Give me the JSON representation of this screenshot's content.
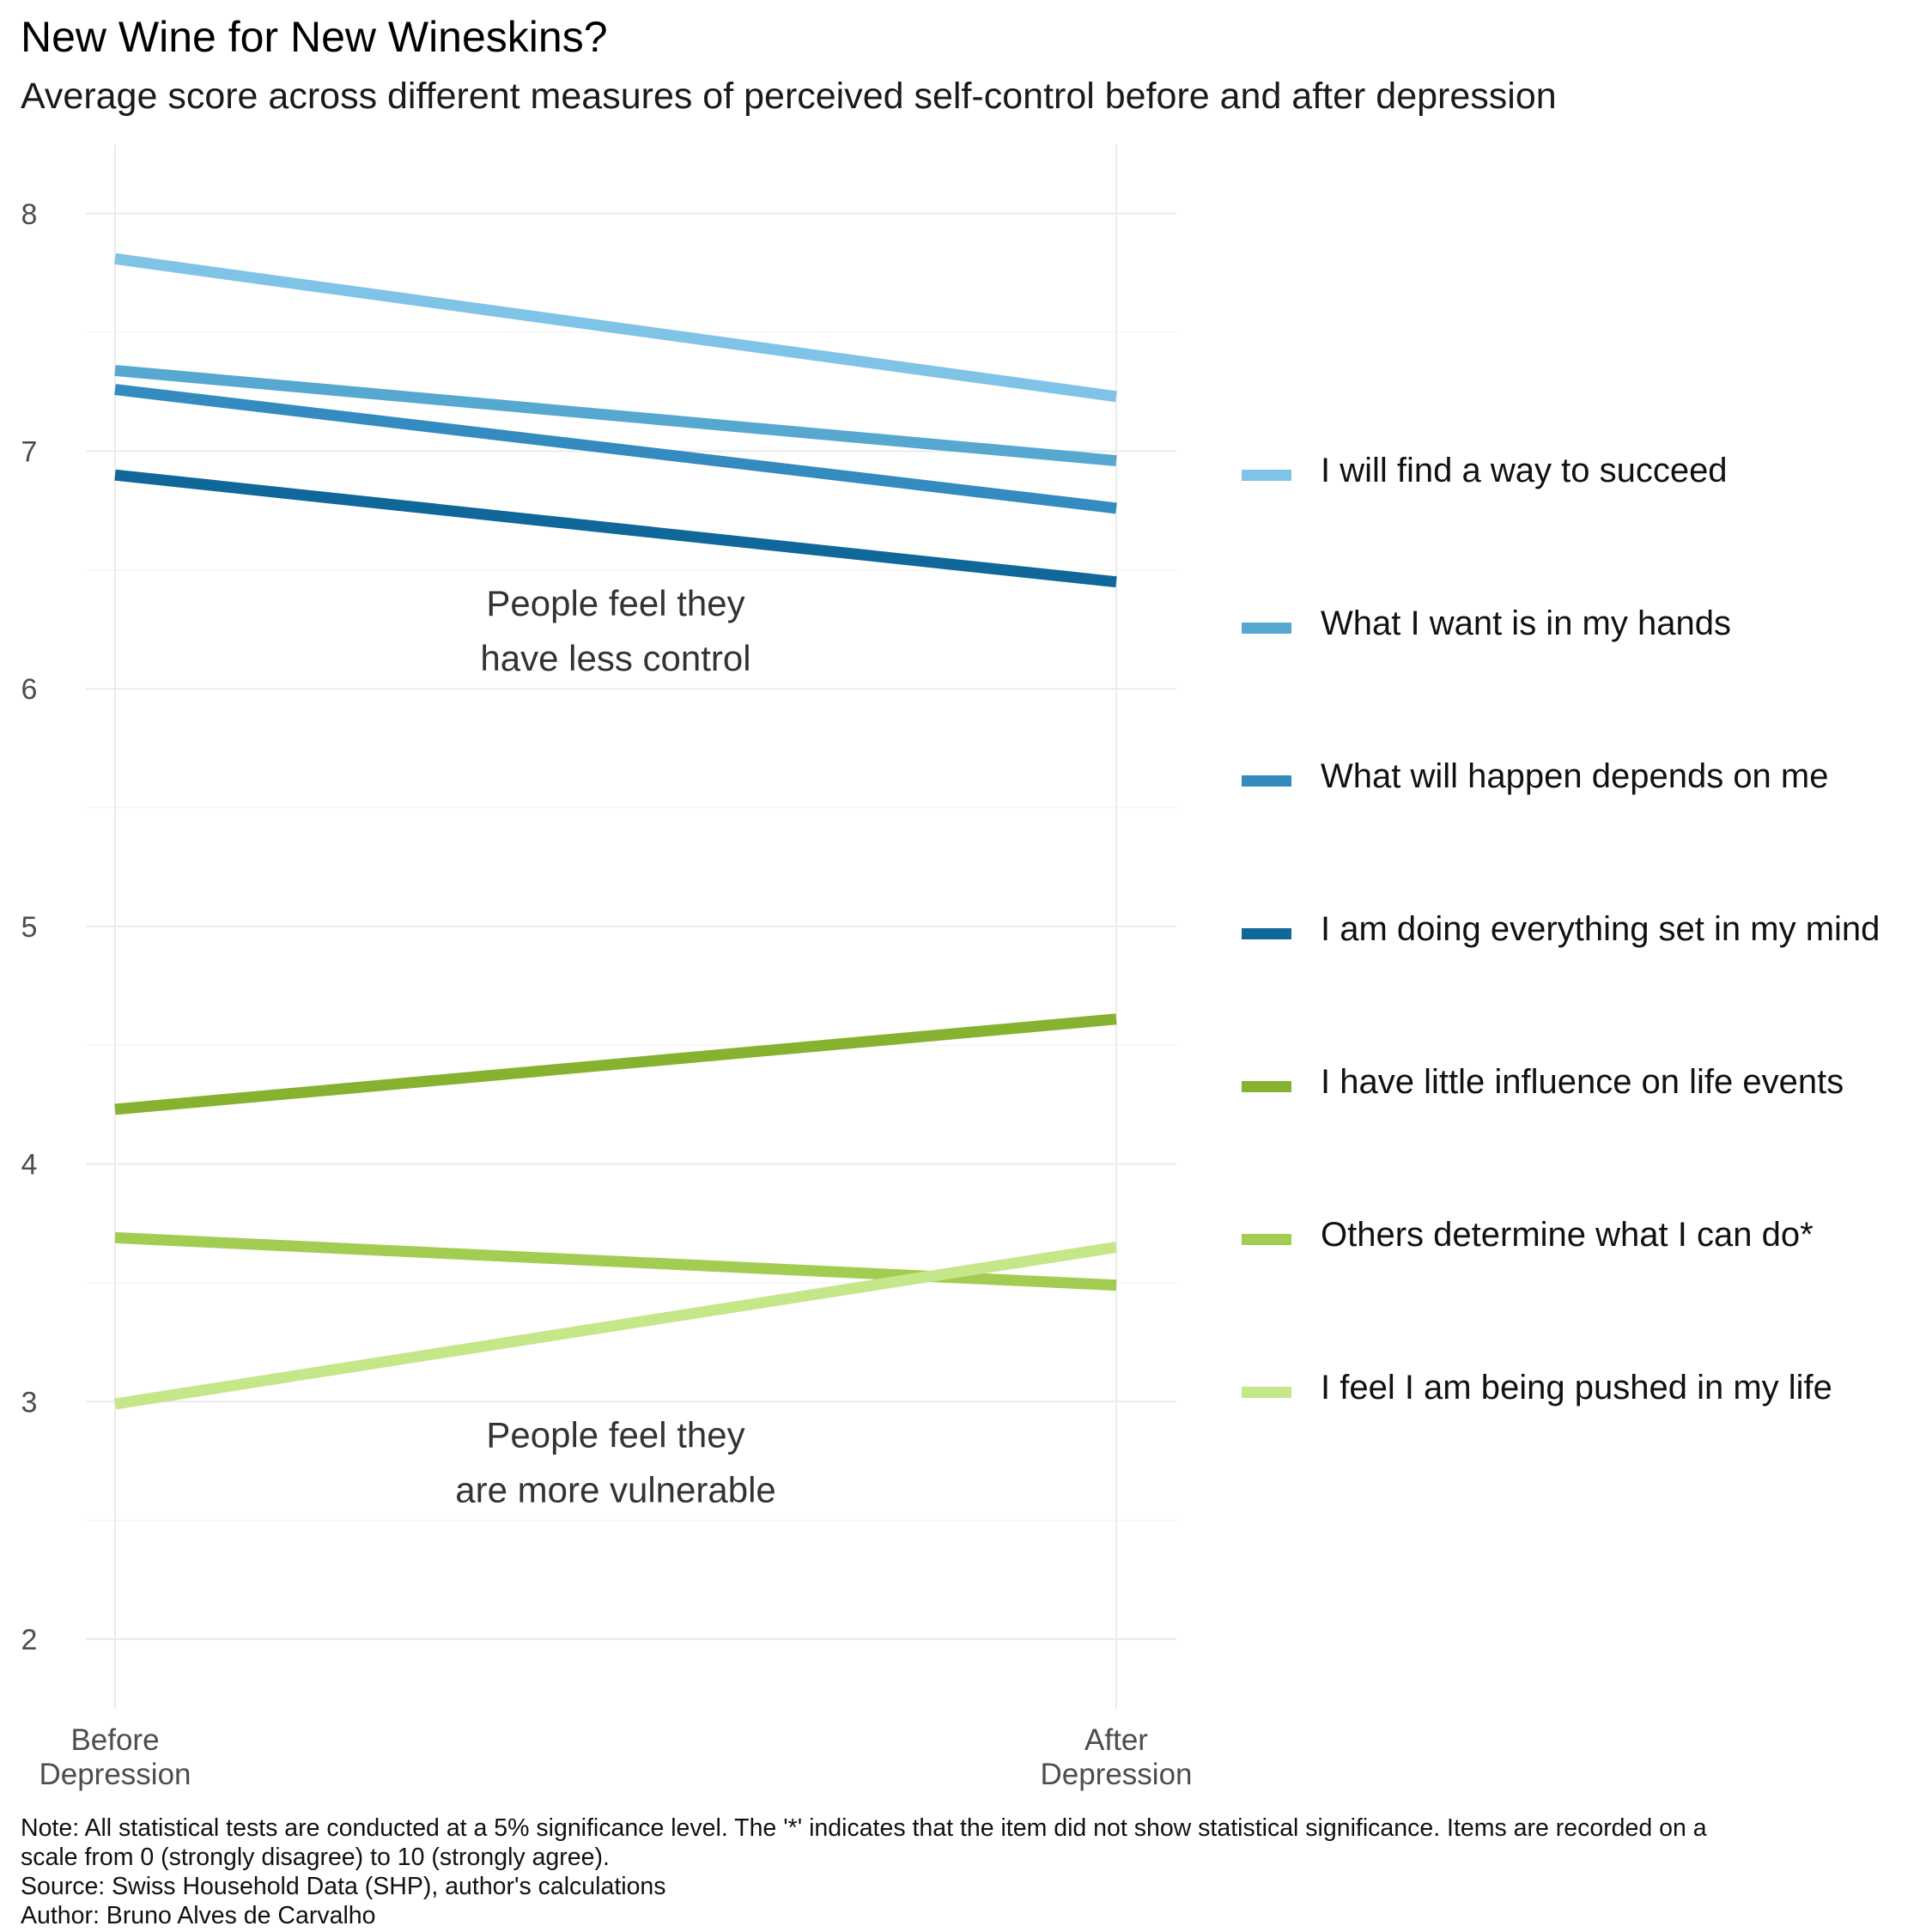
{
  "title": "New Wine for New Wineskins?",
  "subtitle": "Average score across different measures of perceived self-control before and after depression",
  "chart_data": {
    "type": "line",
    "title": "New Wine for New Wineskins?",
    "subtitle": "Average score across different measures of perceived self-control before and after depression",
    "x": [
      "Before\nDepression",
      "After\nDepression"
    ],
    "ylim": [
      1.75,
      8.3
    ],
    "yticks": [
      2,
      3,
      4,
      5,
      6,
      7,
      8
    ],
    "grid": true,
    "legend_position": "right",
    "series": [
      {
        "name": "I will find a way to succeed",
        "values": [
          7.81,
          7.23
        ],
        "color": "#7fc3e6"
      },
      {
        "name": "What I want is in my hands",
        "values": [
          7.34,
          6.96
        ],
        "color": "#56a8d1"
      },
      {
        "name": "What will happen depends on me",
        "values": [
          7.26,
          6.76
        ],
        "color": "#348bbf"
      },
      {
        "name": "I am doing everything set in my mind",
        "values": [
          6.9,
          6.45
        ],
        "color": "#0f679a"
      },
      {
        "name": "I have little influence on life events",
        "values": [
          4.23,
          4.61
        ],
        "color": "#86b22f"
      },
      {
        "name": "Others determine what I can do*",
        "values": [
          3.69,
          3.49
        ],
        "color": "#a3cc52"
      },
      {
        "name": "I feel I am being pushed in my life",
        "values": [
          2.99,
          3.65
        ],
        "color": "#c6e68a"
      }
    ],
    "annotations": [
      {
        "text": [
          "People feel they",
          "have less control"
        ],
        "x": 0.5,
        "y": 6.2
      },
      {
        "text": [
          "People feel they",
          "are more vulnerable"
        ],
        "x": 0.5,
        "y": 2.7
      }
    ]
  },
  "footer": {
    "note_line1": "Note: All statistical tests are conducted at a 5% significance level. The '*' indicates that the item did not show statistical significance. Items are recorded on a",
    "note_line2": "scale from 0 (strongly disagree) to 10 (strongly agree).",
    "source": "Source: Swiss Household Data (SHP), author's calculations",
    "author": "Author: Bruno Alves de Carvalho"
  }
}
